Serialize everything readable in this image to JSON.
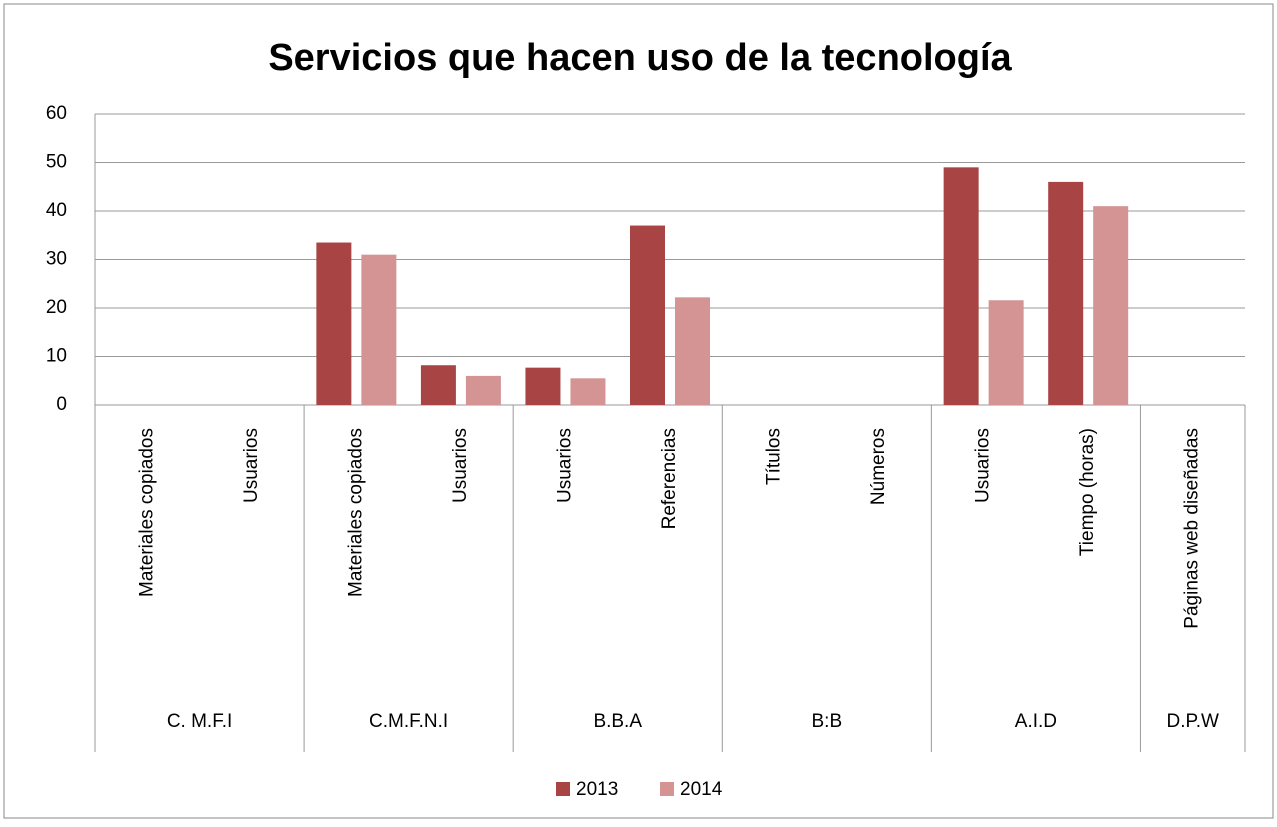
{
  "chart_data": {
    "type": "bar",
    "title": "Servicios que hacen uso de la tecnología",
    "groups": [
      {
        "name": "C. M.F.I",
        "categories": [
          "Materiales copiados",
          "Usuarios"
        ]
      },
      {
        "name": "C.M.F.N.I",
        "categories": [
          "Materiales copiados",
          "Usuarios"
        ]
      },
      {
        "name": "B.B.A",
        "categories": [
          "Usuarios",
          "Referencias"
        ]
      },
      {
        "name": "B:B",
        "categories": [
          "Títulos",
          "Números"
        ]
      },
      {
        "name": "A.I.D",
        "categories": [
          "Usuarios",
          "Tiempo (horas)"
        ]
      },
      {
        "name": "D.P.W",
        "categories": [
          "Páginas web diseñadas"
        ]
      }
    ],
    "series": [
      {
        "name": "2013",
        "color": "#a84444",
        "values": [
          null,
          null,
          33.5,
          8.2,
          7.7,
          37,
          null,
          null,
          49,
          46,
          null
        ]
      },
      {
        "name": "2014",
        "color": "#d49494",
        "values": [
          null,
          null,
          31,
          6,
          5.5,
          22.2,
          null,
          null,
          21.6,
          41,
          null
        ]
      }
    ],
    "ylim": [
      0,
      60
    ],
    "yticks": [
      0,
      10,
      20,
      30,
      40,
      50,
      60
    ],
    "grid": true,
    "legend": "bottom"
  }
}
